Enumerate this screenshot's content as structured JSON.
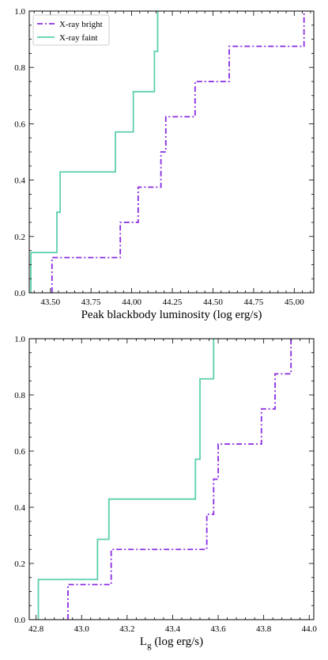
{
  "colors": {
    "bright": "#8a2be2",
    "faint": "#5ccfae"
  },
  "chart_data": [
    {
      "type": "line",
      "subtype": "step-cdf",
      "xlabel": "Peak blackbody luminosity (log erg/s)",
      "ylabel": "",
      "xlim": [
        43.37,
        45.12
      ],
      "ylim": [
        0,
        1
      ],
      "xticks": [
        43.5,
        43.75,
        44.0,
        44.25,
        44.5,
        44.75,
        45.0
      ],
      "xtick_labels": [
        "43.50",
        "43.75",
        "44.00",
        "44.25",
        "44.50",
        "44.75",
        "45.00"
      ],
      "yticks": [
        0,
        0.2,
        0.4,
        0.6,
        0.8,
        1.0
      ],
      "ytick_labels": [
        "0.0",
        "0.2",
        "0.4",
        "0.6",
        "0.8",
        "1.0"
      ],
      "legend": {
        "position": "top-left",
        "entries": [
          "X-ray bright",
          "X-ray faint"
        ]
      },
      "series": [
        {
          "name": "X-ray bright",
          "style": "dashdot",
          "color_key": "bright",
          "x": [
            43.51,
            43.93,
            44.04,
            44.18,
            44.21,
            44.39,
            44.6,
            45.06
          ],
          "y": [
            0.125,
            0.25,
            0.375,
            0.5,
            0.625,
            0.75,
            0.875,
            1.0
          ]
        },
        {
          "name": "X-ray faint",
          "style": "solid",
          "color_key": "faint",
          "x": [
            43.38,
            43.54,
            43.56,
            43.9,
            44.01,
            44.14,
            44.16
          ],
          "y": [
            0.143,
            0.286,
            0.429,
            0.571,
            0.714,
            0.857,
            1.0
          ]
        }
      ]
    },
    {
      "type": "line",
      "subtype": "step-cdf",
      "xlabel": "L",
      "xlabel_sub": "g",
      "xlabel_suffix": " (log erg/s)",
      "ylabel": "",
      "xlim": [
        42.77,
        44.02
      ],
      "ylim": [
        0,
        1
      ],
      "xticks": [
        42.8,
        43.0,
        43.2,
        43.4,
        43.6,
        43.8,
        44.0
      ],
      "xtick_labels": [
        "42.8",
        "43.0",
        "43.2",
        "43.4",
        "43.6",
        "43.8",
        "44.0"
      ],
      "yticks": [
        0,
        0.2,
        0.4,
        0.6,
        0.8,
        1.0
      ],
      "ytick_labels": [
        "0.0",
        "0.2",
        "0.4",
        "0.6",
        "0.8",
        "1.0"
      ],
      "series": [
        {
          "name": "X-ray bright",
          "style": "dashdot",
          "color_key": "bright",
          "x": [
            42.94,
            43.13,
            43.55,
            43.58,
            43.6,
            43.79,
            43.85,
            43.92
          ],
          "y": [
            0.125,
            0.25,
            0.375,
            0.5,
            0.625,
            0.75,
            0.875,
            1.0
          ]
        },
        {
          "name": "X-ray faint",
          "style": "solid",
          "color_key": "faint",
          "x": [
            42.81,
            43.07,
            43.12,
            43.5,
            43.52,
            43.58
          ],
          "y": [
            0.143,
            0.286,
            0.429,
            0.571,
            0.857,
            1.0
          ]
        }
      ]
    }
  ]
}
